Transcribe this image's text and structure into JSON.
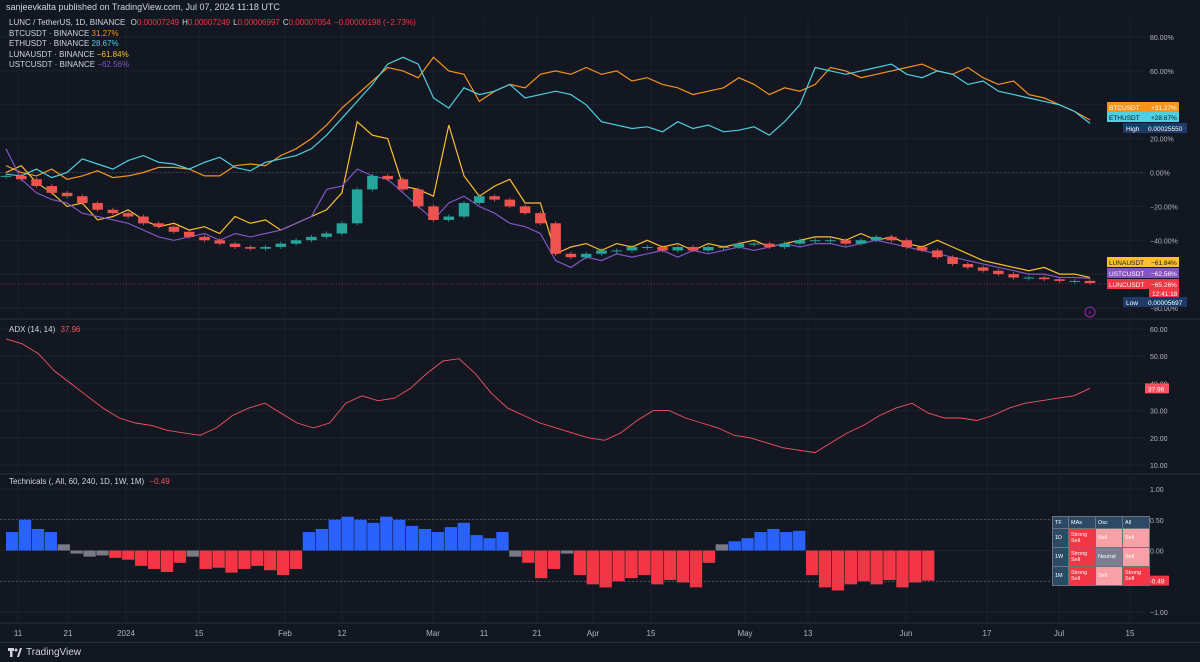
{
  "header": {
    "publisher_line": "sanjeevkalta published on TradingView.com, Jul 07, 2024 11:18 UTC"
  },
  "main_legend": {
    "symbol_line": "LUNC / TetherUS, 1D, BINANCE",
    "ohlc": [
      {
        "label": "O",
        "value": "0.00007249"
      },
      {
        "label": "H",
        "value": "0.00007249"
      },
      {
        "label": "L",
        "value": "0.00006997"
      },
      {
        "label": "C",
        "value": "0.00007054"
      }
    ],
    "change": "−0.00000198 (−2.73%)",
    "compare": [
      {
        "name": "BTCUSDT · BINANCE",
        "value": "31.27%",
        "color": "#f7931a"
      },
      {
        "name": "ETHUSDT · BINANCE",
        "value": "28.67%",
        "color": "#4dd0e1"
      },
      {
        "name": "LUNAUSDT · BINANCE",
        "value": "−61.84%",
        "color": "#fbc02d"
      },
      {
        "name": "USTCUSDT · BINANCE",
        "value": "−62.56%",
        "color": "#7e57c2"
      }
    ]
  },
  "colors": {
    "background": "#131722",
    "grid": "#1e222d",
    "up": "#26a69a",
    "down": "#ef5350",
    "btc": "#f7931a",
    "eth": "#4dd0e1",
    "luna": "#fbc02d",
    "ustc": "#7e57c2",
    "lunc": "#f23645",
    "adx": "#f7525f",
    "tech_up": "#2962ff",
    "tech_down": "#f23645",
    "tech_neutral": "#787b86"
  },
  "chart_data": [
    {
      "type": "line",
      "title": "LUNC / TetherUS, 1D, BINANCE",
      "scale": "percent",
      "x_ticks": [
        "11",
        "21",
        "2024",
        "15",
        "Feb",
        "12",
        "Mar",
        "11",
        "21",
        "Apr",
        "15",
        "May",
        "13",
        "Jun",
        "17",
        "Jul",
        "15"
      ],
      "y_ticks": [
        "80.00%",
        "60.00%",
        "40.00%",
        "20.00%",
        "0.00%",
        "−20.00%",
        "−40.00%",
        "−60.00%",
        "−80.00%"
      ],
      "ylim": [
        -80,
        80
      ],
      "series": [
        {
          "name": "BTCUSDT",
          "color": "#f7931a",
          "last_label": "BTCUSDT",
          "last_value": "+31.27%",
          "values": [
            4,
            0,
            -2,
            2,
            -4,
            -2,
            1,
            -3,
            -2,
            0,
            3,
            3,
            2,
            -2,
            -2,
            4,
            5,
            4,
            10,
            14,
            20,
            28,
            38,
            46,
            54,
            62,
            60,
            56,
            68,
            60,
            58,
            42,
            48,
            52,
            50,
            58,
            60,
            58,
            62,
            58,
            60,
            54,
            56,
            52,
            50,
            46,
            48,
            50,
            56,
            52,
            46,
            50,
            48,
            52,
            62,
            60,
            56,
            58,
            60,
            62,
            64,
            60,
            58,
            62,
            56,
            52,
            54,
            46,
            44,
            40,
            36,
            31
          ]
        },
        {
          "name": "ETHUSDT",
          "color": "#4dd0e1",
          "last_label": "ETHUSDT",
          "last_value": "+28.67%",
          "values": [
            -1,
            -2,
            2,
            -3,
            0,
            8,
            5,
            2,
            7,
            10,
            6,
            5,
            2,
            6,
            9,
            3,
            1,
            6,
            8,
            10,
            14,
            22,
            32,
            42,
            52,
            64,
            68,
            64,
            44,
            38,
            50,
            46,
            48,
            52,
            44,
            46,
            48,
            46,
            40,
            30,
            28,
            26,
            27,
            24,
            30,
            26,
            28,
            24,
            25,
            27,
            22,
            30,
            40,
            62,
            60,
            58,
            60,
            62,
            64,
            58,
            56,
            60,
            58,
            52,
            54,
            48,
            46,
            44,
            42,
            40,
            36,
            29
          ]
        },
        {
          "name": "LUNAUSDT",
          "color": "#fbc02d",
          "last_label": "LUNAUSDT",
          "last_value": "−61.84%",
          "values": [
            0,
            4,
            -6,
            -12,
            -20,
            -18,
            -28,
            -26,
            -22,
            -28,
            -32,
            -30,
            -34,
            -32,
            -36,
            -26,
            -30,
            -28,
            -34,
            -30,
            -26,
            -22,
            -12,
            30,
            22,
            20,
            -8,
            -10,
            -14,
            28,
            -2,
            -14,
            -8,
            -4,
            -18,
            -18,
            -48,
            -44,
            -42,
            -46,
            -42,
            -44,
            -40,
            -44,
            -42,
            -46,
            -42,
            -44,
            -42,
            -40,
            -44,
            -42,
            -40,
            -38,
            -38,
            -40,
            -36,
            -40,
            -38,
            -42,
            -44,
            -40,
            -44,
            -48,
            -52,
            -54,
            -56,
            -58,
            -56,
            -60,
            -60,
            -62
          ]
        },
        {
          "name": "USTCUSDT",
          "color": "#7e57c2",
          "last_label": "USTCUSDT",
          "last_value": "−62.56%",
          "values": [
            14,
            -4,
            -12,
            -16,
            -18,
            -24,
            -26,
            -28,
            -30,
            -34,
            -38,
            -40,
            -38,
            -36,
            -40,
            -36,
            -38,
            -36,
            -34,
            -30,
            -26,
            -10,
            -8,
            2,
            -2,
            -4,
            -12,
            -20,
            -28,
            -18,
            -14,
            -20,
            -24,
            -30,
            -32,
            -36,
            -52,
            -56,
            -50,
            -52,
            -48,
            -50,
            -48,
            -46,
            -50,
            -46,
            -48,
            -46,
            -44,
            -46,
            -44,
            -42,
            -44,
            -42,
            -42,
            -44,
            -42,
            -40,
            -42,
            -44,
            -46,
            -48,
            -50,
            -52,
            -54,
            -56,
            -58,
            -60,
            -60,
            -62,
            -62,
            -62.5
          ]
        },
        {
          "name": "LUNCUSDT",
          "type": "candlestick",
          "color": "#f23645",
          "last_label": "LUNCUSDT",
          "last_value": "−65.26%",
          "countdown": "12:41:18",
          "values": [
            -2,
            -4,
            -8,
            -12,
            -14,
            -18,
            -22,
            -24,
            -26,
            -30,
            -32,
            -35,
            -38,
            -40,
            -42,
            -44,
            -45,
            -44,
            -42,
            -40,
            -38,
            -36,
            -30,
            -10,
            -2,
            -4,
            -10,
            -20,
            -28,
            -26,
            -18,
            -14,
            -16,
            -20,
            -24,
            -30,
            -48,
            -50,
            -48,
            -46,
            -46,
            -44,
            -44,
            -46,
            -44,
            -46,
            -44,
            -44,
            -42,
            -42,
            -44,
            -42,
            -40,
            -40,
            -40,
            -42,
            -40,
            -38,
            -40,
            -44,
            -46,
            -50,
            -54,
            -56,
            -58,
            -60,
            -62,
            -62,
            -63,
            -64,
            -64,
            -65.3
          ]
        }
      ],
      "price_labels": [
        {
          "label": "High",
          "value": "0.00025550"
        },
        {
          "label": "Low",
          "value": "0.00005697"
        }
      ]
    },
    {
      "type": "line",
      "title": "ADX (14, 14)",
      "last_value": "37.96",
      "y_ticks": [
        "60.00",
        "50.00",
        "40.00",
        "30.00",
        "20.00",
        "10.00"
      ],
      "ylim": [
        7,
        62
      ],
      "series": [
        {
          "name": "ADX",
          "color": "#f7525f",
          "values": [
            58,
            56,
            52,
            45,
            40,
            35,
            30,
            26,
            24,
            23,
            21,
            20,
            19,
            22,
            27,
            30,
            32,
            28,
            24,
            22,
            24,
            32,
            35,
            33,
            34,
            38,
            44,
            49,
            50,
            44,
            36,
            30,
            27,
            24,
            22,
            20,
            18,
            17,
            20,
            25,
            29,
            29,
            26,
            24,
            22,
            19,
            18,
            16,
            14,
            13,
            12,
            16,
            20,
            23,
            27,
            30,
            32,
            28,
            26,
            26,
            25,
            27,
            30,
            32,
            33,
            34,
            35,
            38
          ]
        }
      ]
    },
    {
      "type": "bar",
      "title": "Technicals (, All, 60, 240, 1D, 1W, 1M)",
      "last_value": "−0.49",
      "y_ticks": [
        "1.00",
        "0.50",
        "0.00",
        "−0.50",
        "−1.00"
      ],
      "ylim": [
        -1,
        1
      ],
      "values": [
        0.3,
        0.5,
        0.35,
        0.3,
        0.1,
        -0.05,
        -0.1,
        -0.08,
        -0.12,
        -0.15,
        -0.25,
        -0.3,
        -0.35,
        -0.2,
        -0.1,
        -0.3,
        -0.28,
        -0.36,
        -0.3,
        -0.25,
        -0.32,
        -0.4,
        -0.3,
        0.3,
        0.35,
        0.5,
        0.55,
        0.5,
        0.45,
        0.55,
        0.5,
        0.4,
        0.35,
        0.3,
        0.38,
        0.45,
        0.25,
        0.2,
        0.3,
        -0.1,
        -0.2,
        -0.45,
        -0.3,
        -0.05,
        -0.4,
        -0.55,
        -0.6,
        -0.5,
        -0.45,
        -0.4,
        -0.55,
        -0.48,
        -0.52,
        -0.6,
        -0.2,
        0.1,
        0.15,
        0.2,
        0.3,
        0.35,
        0.3,
        0.32,
        -0.4,
        -0.6,
        -0.65,
        -0.55,
        -0.5,
        -0.55,
        -0.48,
        -0.6,
        -0.52,
        -0.49
      ]
    }
  ],
  "technicals_table": {
    "headers": [
      "TF",
      "MAs",
      "Osc",
      "All"
    ],
    "rows": [
      {
        "tf": "1D",
        "mas": "Strong Sell",
        "osc": "Sell",
        "all": "Sell",
        "classes": [
          "ss",
          "s",
          "s"
        ]
      },
      {
        "tf": "1W",
        "mas": "Strong Sell",
        "osc": "Neutral",
        "all": "Sell",
        "classes": [
          "ss",
          "n",
          "s"
        ]
      },
      {
        "tf": "1M",
        "mas": "Strong Sell",
        "osc": "Sell",
        "all": "Strong Sell",
        "classes": [
          "ss",
          "s",
          "ss"
        ]
      }
    ]
  },
  "footer": {
    "brand": "TradingView"
  }
}
